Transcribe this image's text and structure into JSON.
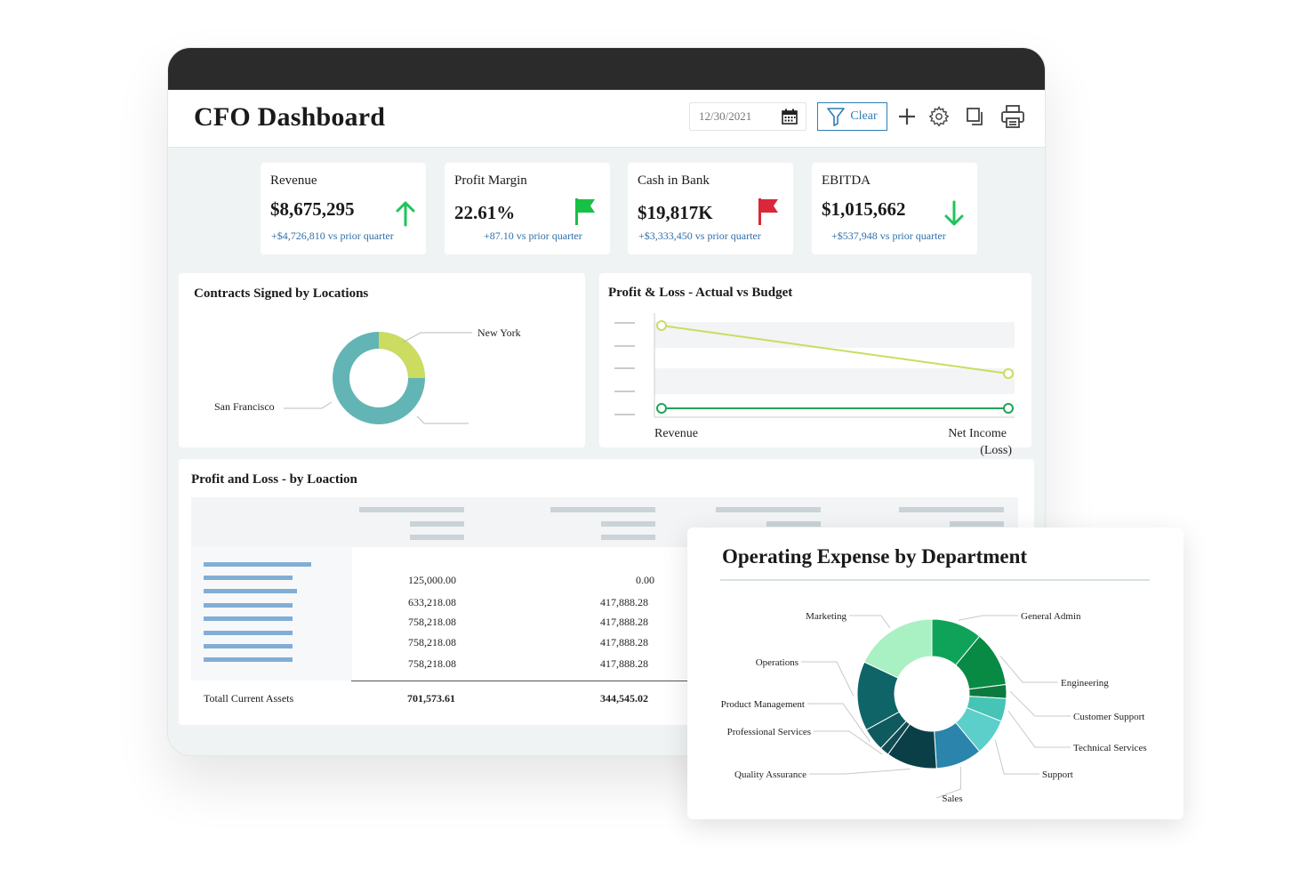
{
  "app": {
    "title": "CFO Dashboard",
    "date_value": "12/30/2021",
    "clear_label": "Clear"
  },
  "colors": {
    "accent_blue": "#2f7fb3",
    "delta_blue": "#2f6faa",
    "up_green": "#1fc45a",
    "flag_green": "#17c046",
    "flag_red": "#d8283a",
    "donut_teal": "#62b5b4",
    "donut_lime": "#cbdc61",
    "line_budget": "#cbdc61",
    "line_actual": "#1ea55a"
  },
  "kpis": [
    {
      "label": "Revenue",
      "value": "$8,675,295",
      "delta": "+$4,726,810 vs prior quarter",
      "icon": "arrow-up-icon"
    },
    {
      "label": "Profit Margin",
      "value": "22.61%",
      "delta": "+87.10 vs prior quarter",
      "icon": "green-flag-icon"
    },
    {
      "label": "Cash in Bank",
      "value": "$19,817K",
      "delta": "+$3,333,450 vs prior quarter",
      "icon": "red-flag-icon"
    },
    {
      "label": "EBITDA",
      "value": "$1,015,662",
      "delta": "+$537,948 vs prior quarter",
      "icon": "arrow-down-icon"
    }
  ],
  "contracts": {
    "title": "Contracts Signed by Locations",
    "labels": [
      "New York",
      "San Francisco"
    ]
  },
  "pnl_chart": {
    "title": "Profit & Loss - Actual vs Budget",
    "x_labels": [
      "Revenue",
      "Net Income",
      "(Loss)"
    ]
  },
  "pnl_table": {
    "title": "Profit and Loss - by Loaction",
    "col1": [
      "125,000.00",
      "633,218.08",
      "758,218.08",
      "758,218.08",
      "758,218.08"
    ],
    "col2": [
      "0.00",
      "417,888.28",
      "417,888.28",
      "417,888.28",
      "417,888.28"
    ],
    "total_label": "Totall Current Assets",
    "total_col1": "701,573.61",
    "total_col2": "344,545.02"
  },
  "opex": {
    "title": "Operating Expense by Department",
    "departments": [
      {
        "name": "General Admin",
        "share": 0.11,
        "color": "#0fa35a"
      },
      {
        "name": "Engineering",
        "share": 0.12,
        "color": "#098a44"
      },
      {
        "name": "Customer Support",
        "share": 0.03,
        "color": "#0c7a3e"
      },
      {
        "name": "Technical Services",
        "share": 0.05,
        "color": "#46c4b6"
      },
      {
        "name": "Support",
        "share": 0.08,
        "color": "#5ccfcb"
      },
      {
        "name": "Sales",
        "share": 0.1,
        "color": "#2a84ab"
      },
      {
        "name": "Quality Assurance",
        "share": 0.11,
        "color": "#0b3f47"
      },
      {
        "name": "Professional Services",
        "share": 0.02,
        "color": "#114c52"
      },
      {
        "name": "Product Management",
        "share": 0.05,
        "color": "#0f5a5e"
      },
      {
        "name": "Operations",
        "share": 0.15,
        "color": "#0e6466"
      },
      {
        "name": "Marketing",
        "share": 0.18,
        "color": "#a9f0c3"
      }
    ]
  }
}
